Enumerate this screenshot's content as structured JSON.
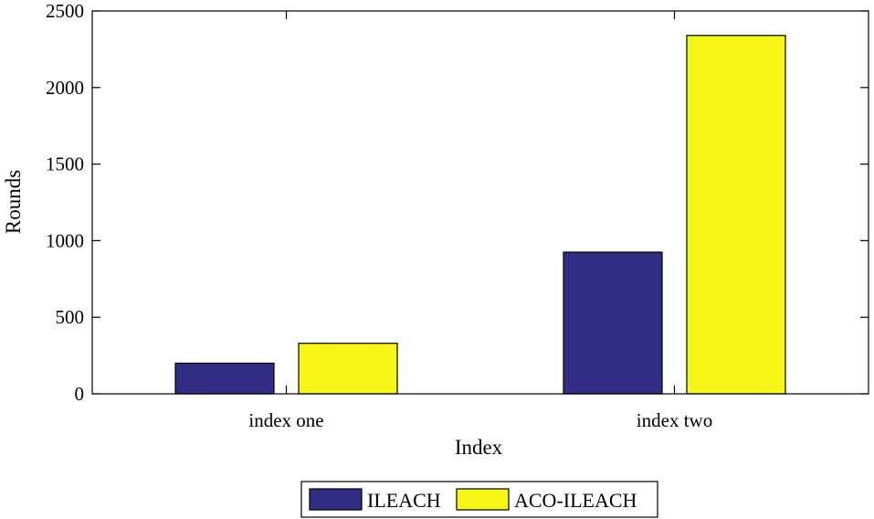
{
  "chart_data": {
    "type": "bar",
    "title": "",
    "xlabel": "Index",
    "ylabel": "Rounds",
    "categories": [
      "index one",
      "index two"
    ],
    "series": [
      {
        "name": "ILEACH",
        "values": [
          200,
          925
        ],
        "color": "#332e85"
      },
      {
        "name": "ACO-ILEACH",
        "values": [
          330,
          2340
        ],
        "color": "#f5f516"
      }
    ],
    "ylim": [
      0,
      2500
    ],
    "yticks": [
      0,
      500,
      1000,
      1500,
      2000,
      2500
    ],
    "grid": false,
    "legend_position": "bottom"
  }
}
